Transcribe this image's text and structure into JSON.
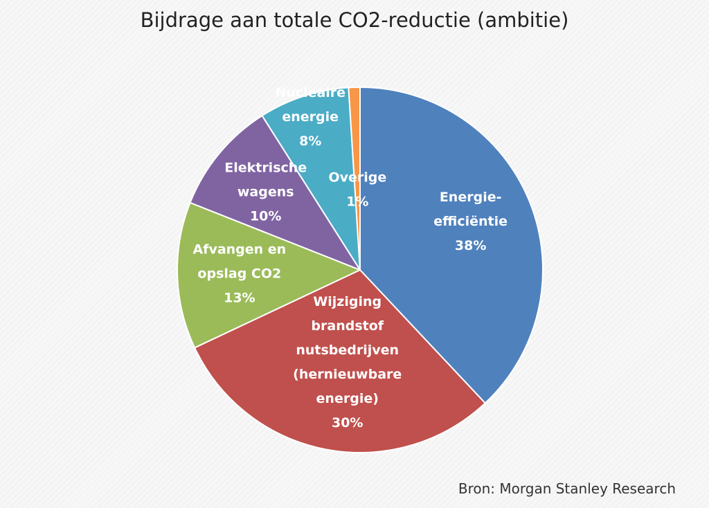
{
  "chart_data": {
    "type": "pie",
    "title": "Bijdrage aan totale CO2-reductie (ambitie)",
    "source": "Bron: Morgan Stanley Research",
    "start_angle_deg": 0,
    "direction": "clockwise",
    "slices": [
      {
        "label_lines": [
          "Energie-",
          "efficiëntie"
        ],
        "value": 38,
        "value_label": "38%",
        "color": "#4f81bd"
      },
      {
        "label_lines": [
          "Wijziging",
          "brandstof",
          "nutsbedrijven",
          "(hernieuwbare",
          "energie)"
        ],
        "value": 30,
        "value_label": "30%",
        "color": "#c0504d"
      },
      {
        "label_lines": [
          "Afvangen en",
          "opslag CO2"
        ],
        "value": 13,
        "value_label": "13%",
        "color": "#9bbb59"
      },
      {
        "label_lines": [
          "Elektrische",
          "wagens"
        ],
        "value": 10,
        "value_label": "10%",
        "color": "#8064a2"
      },
      {
        "label_lines": [
          "Nucleaire",
          "energie"
        ],
        "value": 8,
        "value_label": "8%",
        "color": "#4bacc6"
      },
      {
        "label_lines": [
          "Overige"
        ],
        "value": 1,
        "value_label": "1%",
        "color": "#f79646"
      }
    ]
  }
}
